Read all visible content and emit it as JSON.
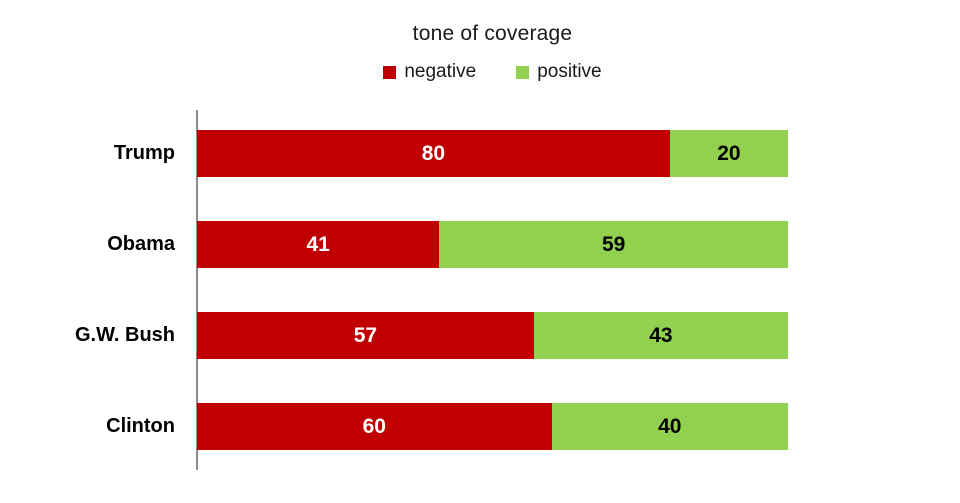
{
  "chart_data": {
    "type": "bar",
    "orientation": "horizontal",
    "stacked": true,
    "title": "tone of coverage",
    "categories": [
      "Trump",
      "Obama",
      "G.W. Bush",
      "Clinton"
    ],
    "series": [
      {
        "name": "negative",
        "color": "#c00000",
        "values": [
          80,
          41,
          57,
          60
        ]
      },
      {
        "name": "positive",
        "color": "#92d050",
        "values": [
          20,
          59,
          43,
          40
        ]
      }
    ],
    "xlim": [
      0,
      100
    ],
    "value_labels": true,
    "legend_position": "top",
    "grid": false,
    "axis_line_color": "#8c8c8c",
    "negative_label_color": "#ffffff",
    "positive_label_color": "#000000"
  }
}
